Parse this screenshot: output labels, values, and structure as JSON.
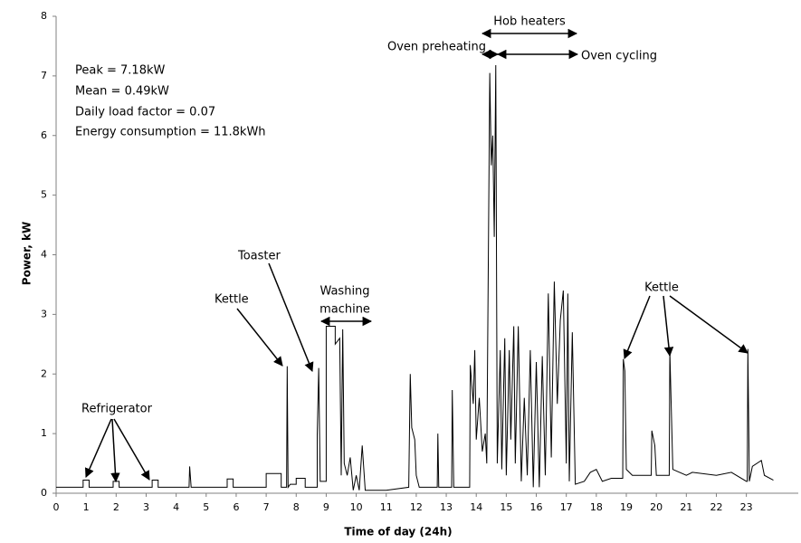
{
  "chart_data": {
    "type": "line",
    "xlabel": "Time of day (24h)",
    "ylabel": "Power, kW",
    "color": "#000000",
    "xlim": [
      0,
      24.73
    ],
    "ylim": [
      0,
      8
    ],
    "xticks": [
      0,
      1,
      2,
      3,
      4,
      5,
      6,
      7,
      8,
      9,
      10,
      11,
      12,
      13,
      14,
      15,
      16,
      17,
      18,
      19,
      20,
      21,
      22,
      23
    ],
    "yticks": [
      0,
      1,
      2,
      3,
      4,
      5,
      6,
      7,
      8
    ],
    "grid": false,
    "stats": [
      "Peak = 7.18kW",
      "Mean = 0.49kW",
      "Daily load factor = 0.07",
      "Energy consumption = 11.8kWh"
    ],
    "annotations": [
      "Refrigerator",
      "Kettle",
      "Toaster",
      "Washing",
      "machine",
      "Hob heaters",
      "Oven preheating",
      "Oven cycling",
      "Kettle"
    ],
    "x": [
      0,
      0.9,
      0.9,
      1.1,
      1.1,
      1.9,
      1.9,
      2.1,
      2.1,
      3.2,
      3.2,
      3.4,
      3.4,
      4.43,
      4.45,
      4.5,
      5.7,
      5.7,
      5.9,
      5.9,
      7.0,
      7.0,
      7.5,
      7.5,
      7.68,
      7.7,
      7.73,
      7.8,
      8.0,
      8.0,
      8.3,
      8.3,
      8.7,
      8.7,
      8.75,
      8.8,
      9.0,
      9.0,
      9.3,
      9.3,
      9.45,
      9.5,
      9.55,
      9.6,
      9.7,
      9.8,
      9.9,
      10.0,
      10.1,
      10.2,
      10.3,
      11.0,
      11.75,
      11.8,
      11.85,
      11.95,
      12.0,
      12.1,
      12.7,
      12.72,
      12.75,
      13.18,
      13.2,
      13.25,
      13.78,
      13.8,
      13.9,
      13.95,
      14.0,
      14.1,
      14.2,
      14.3,
      14.35,
      14.45,
      14.5,
      14.55,
      14.6,
      14.65,
      14.7,
      14.8,
      14.85,
      14.95,
      15.0,
      15.1,
      15.15,
      15.25,
      15.3,
      15.4,
      15.5,
      15.6,
      15.7,
      15.8,
      15.9,
      16.0,
      16.1,
      16.2,
      16.3,
      16.4,
      16.5,
      16.6,
      16.7,
      16.8,
      16.9,
      17.0,
      17.05,
      17.1,
      17.2,
      17.3,
      17.6,
      17.8,
      18.0,
      18.2,
      18.5,
      18.88,
      18.9,
      18.95,
      19.0,
      19.2,
      19.83,
      19.85,
      19.95,
      20.0,
      20.43,
      20.45,
      20.55,
      21.0,
      21.2,
      22.0,
      22.5,
      23.0,
      23.03,
      23.05,
      23.1,
      23.2,
      23.5,
      23.6,
      23.9
    ],
    "values": [
      0.1,
      0.1,
      0.22,
      0.22,
      0.1,
      0.1,
      0.2,
      0.2,
      0.1,
      0.1,
      0.22,
      0.22,
      0.1,
      0.1,
      0.45,
      0.1,
      0.1,
      0.24,
      0.24,
      0.1,
      0.1,
      0.33,
      0.33,
      0.1,
      0.1,
      2.13,
      0.1,
      0.15,
      0.15,
      0.25,
      0.25,
      0.1,
      0.1,
      0.97,
      2.1,
      0.2,
      0.2,
      2.8,
      2.8,
      2.5,
      2.6,
      0.3,
      2.75,
      0.5,
      0.3,
      0.6,
      0.05,
      0.3,
      0.05,
      0.8,
      0.05,
      0.05,
      0.1,
      2.0,
      1.1,
      0.9,
      0.3,
      0.1,
      0.1,
      1.0,
      0.1,
      0.1,
      1.73,
      0.1,
      0.1,
      2.15,
      1.5,
      2.4,
      0.9,
      1.6,
      0.7,
      1.0,
      0.5,
      7.05,
      5.5,
      6.0,
      4.3,
      7.18,
      0.5,
      2.4,
      0.4,
      2.6,
      0.3,
      2.4,
      0.9,
      2.8,
      0.5,
      2.8,
      0.2,
      1.6,
      0.3,
      2.4,
      0.1,
      2.2,
      0.1,
      2.3,
      0.3,
      3.35,
      0.6,
      3.55,
      1.5,
      2.9,
      3.4,
      0.5,
      3.35,
      0.2,
      2.7,
      0.15,
      0.2,
      0.35,
      0.4,
      0.2,
      0.25,
      0.25,
      2.25,
      2.05,
      0.4,
      0.3,
      0.3,
      1.05,
      0.8,
      0.3,
      0.3,
      2.38,
      0.4,
      0.3,
      0.35,
      0.3,
      0.35,
      0.2,
      0.2,
      2.42,
      0.2,
      0.45,
      0.55,
      0.3,
      0.22
    ]
  }
}
